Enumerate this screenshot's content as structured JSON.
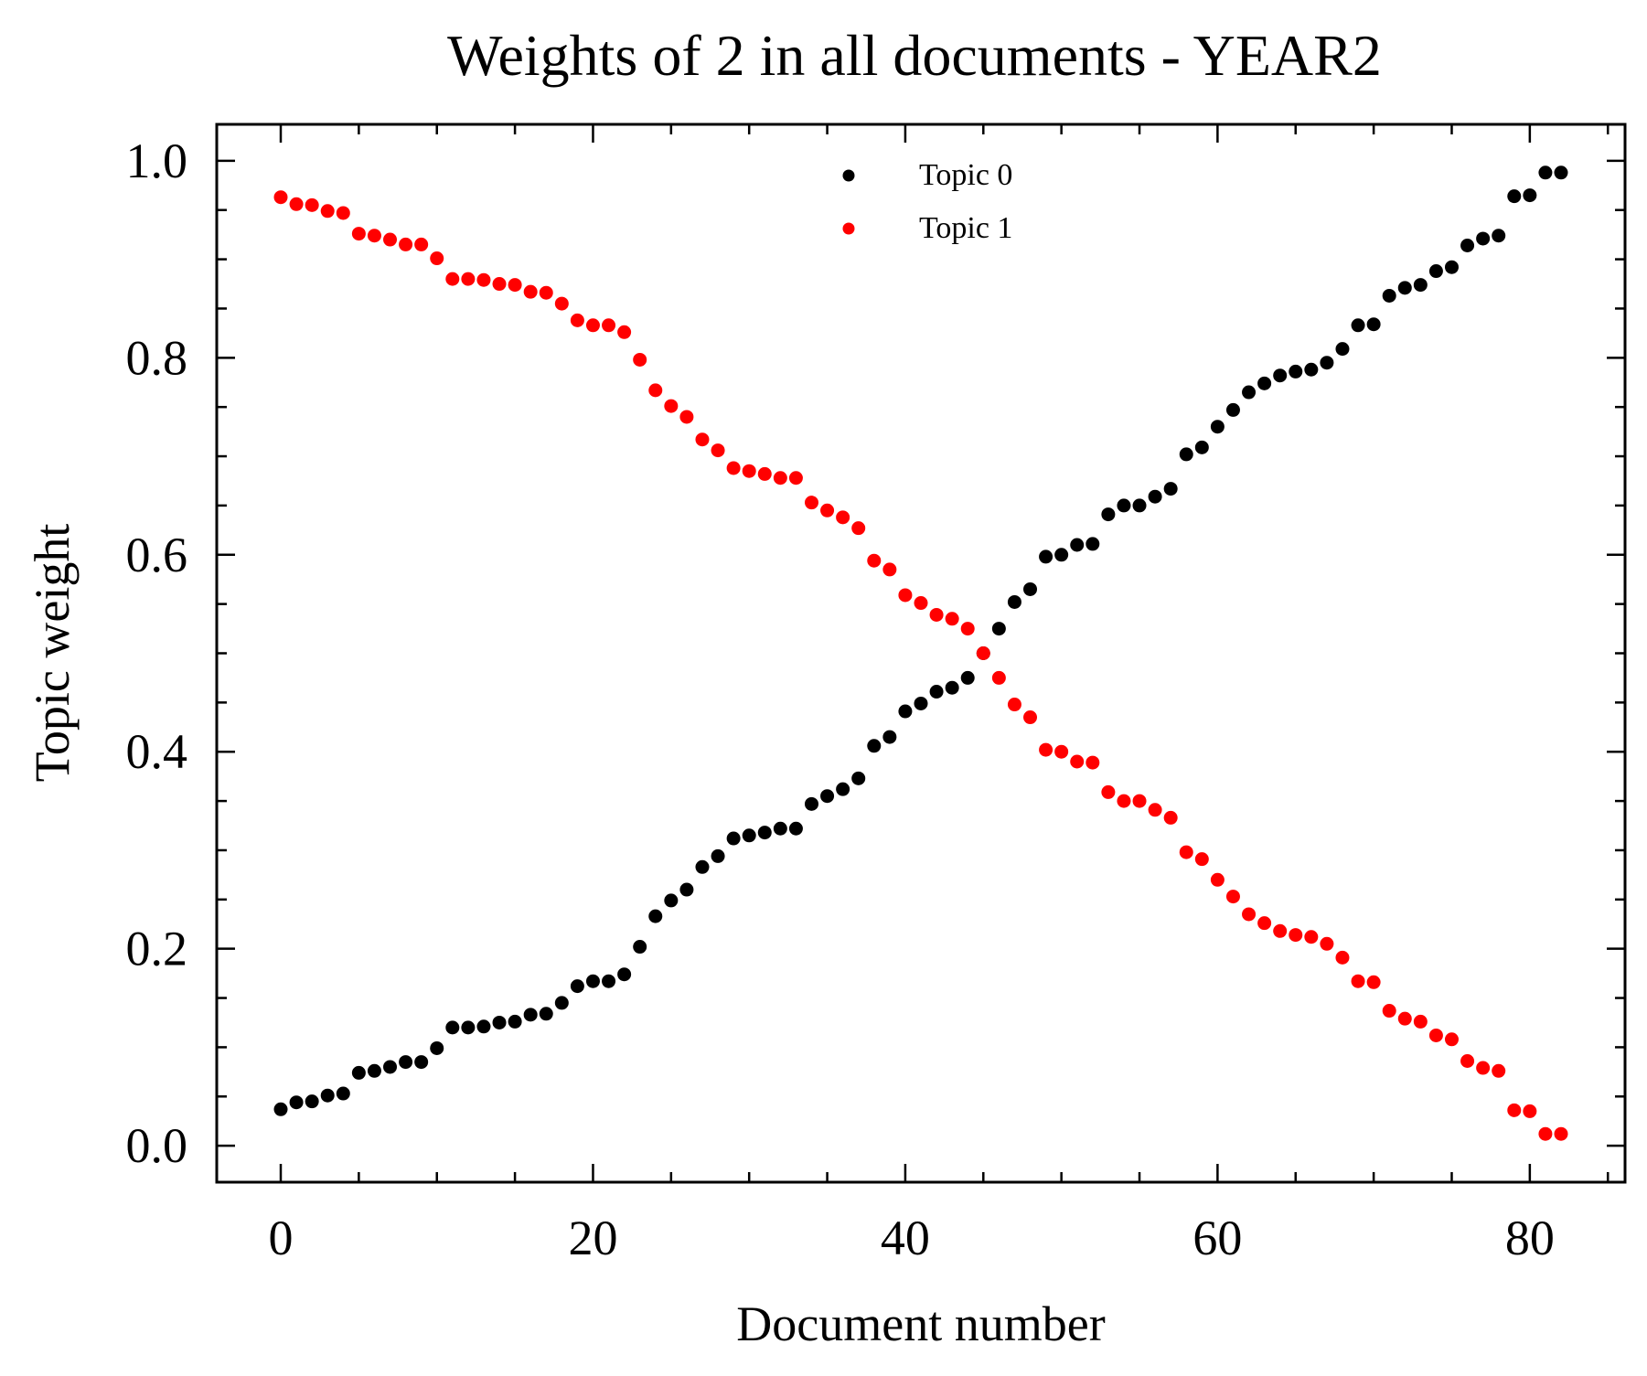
{
  "chart_data": {
    "type": "scatter",
    "title": "Weights of 2 in all documents - YEAR2",
    "xlabel": "Document number",
    "ylabel": "Topic weight",
    "xlim": [
      -4.1,
      86.1
    ],
    "ylim": [
      -0.037,
      1.037
    ],
    "xticks": [
      0,
      20,
      40,
      60,
      80
    ],
    "xtick_labels": [
      "0",
      "20",
      "40",
      "60",
      "80"
    ],
    "yticks": [
      0.0,
      0.2,
      0.4,
      0.6,
      0.8,
      1.0
    ],
    "ytick_labels": [
      "0.0",
      "0.2",
      "0.4",
      "0.6",
      "0.8",
      "1.0"
    ],
    "grid": false,
    "legend_position": "top-center",
    "series": [
      {
        "name": "Topic 0",
        "color": "#000000",
        "x": [
          0,
          1,
          2,
          3,
          4,
          5,
          6,
          7,
          8,
          9,
          10,
          11,
          12,
          13,
          14,
          15,
          16,
          17,
          18,
          19,
          20,
          21,
          22,
          23,
          24,
          25,
          26,
          27,
          28,
          29,
          30,
          31,
          32,
          33,
          34,
          35,
          36,
          37,
          38,
          39,
          40,
          41,
          42,
          43,
          44,
          45,
          46,
          47,
          48,
          49,
          50,
          51,
          52,
          53,
          54,
          55,
          56,
          57,
          58,
          59,
          60,
          61,
          62,
          63,
          64,
          65,
          66,
          67,
          68,
          69,
          70,
          71,
          72,
          73,
          74,
          75,
          76,
          77,
          78,
          79,
          80,
          81,
          82
        ],
        "y": [
          0.037,
          0.044,
          0.045,
          0.051,
          0.053,
          0.074,
          0.076,
          0.08,
          0.085,
          0.085,
          0.099,
          0.12,
          0.12,
          0.121,
          0.125,
          0.126,
          0.133,
          0.134,
          0.145,
          0.162,
          0.167,
          0.167,
          0.174,
          0.202,
          0.233,
          0.249,
          0.26,
          0.283,
          0.294,
          0.312,
          0.315,
          0.318,
          0.322,
          0.322,
          0.347,
          0.355,
          0.362,
          0.373,
          0.406,
          0.415,
          0.441,
          0.449,
          0.461,
          0.465,
          0.475,
          0.5,
          0.525,
          0.552,
          0.565,
          0.598,
          0.6,
          0.61,
          0.611,
          0.641,
          0.65,
          0.65,
          0.659,
          0.667,
          0.702,
          0.709,
          0.73,
          0.747,
          0.765,
          0.774,
          0.782,
          0.786,
          0.788,
          0.795,
          0.809,
          0.833,
          0.834,
          0.863,
          0.871,
          0.874,
          0.888,
          0.892,
          0.914,
          0.921,
          0.924,
          0.964,
          0.965,
          0.988,
          0.988
        ]
      },
      {
        "name": "Topic 1",
        "color": "#ff0000",
        "x": [
          0,
          1,
          2,
          3,
          4,
          5,
          6,
          7,
          8,
          9,
          10,
          11,
          12,
          13,
          14,
          15,
          16,
          17,
          18,
          19,
          20,
          21,
          22,
          23,
          24,
          25,
          26,
          27,
          28,
          29,
          30,
          31,
          32,
          33,
          34,
          35,
          36,
          37,
          38,
          39,
          40,
          41,
          42,
          43,
          44,
          45,
          46,
          47,
          48,
          49,
          50,
          51,
          52,
          53,
          54,
          55,
          56,
          57,
          58,
          59,
          60,
          61,
          62,
          63,
          64,
          65,
          66,
          67,
          68,
          69,
          70,
          71,
          72,
          73,
          74,
          75,
          76,
          77,
          78,
          79,
          80,
          81,
          82
        ],
        "y": [
          0.963,
          0.956,
          0.955,
          0.949,
          0.947,
          0.926,
          0.924,
          0.92,
          0.915,
          0.915,
          0.901,
          0.88,
          0.88,
          0.879,
          0.875,
          0.874,
          0.867,
          0.866,
          0.855,
          0.838,
          0.833,
          0.833,
          0.826,
          0.798,
          0.767,
          0.751,
          0.74,
          0.717,
          0.706,
          0.688,
          0.685,
          0.682,
          0.678,
          0.678,
          0.653,
          0.645,
          0.638,
          0.627,
          0.594,
          0.585,
          0.559,
          0.551,
          0.539,
          0.535,
          0.525,
          0.5,
          0.475,
          0.448,
          0.435,
          0.402,
          0.4,
          0.39,
          0.389,
          0.359,
          0.35,
          0.35,
          0.341,
          0.333,
          0.298,
          0.291,
          0.27,
          0.253,
          0.235,
          0.226,
          0.218,
          0.214,
          0.212,
          0.205,
          0.191,
          0.167,
          0.166,
          0.137,
          0.129,
          0.126,
          0.112,
          0.108,
          0.086,
          0.079,
          0.076,
          0.036,
          0.035,
          0.012,
          0.012
        ]
      }
    ]
  }
}
